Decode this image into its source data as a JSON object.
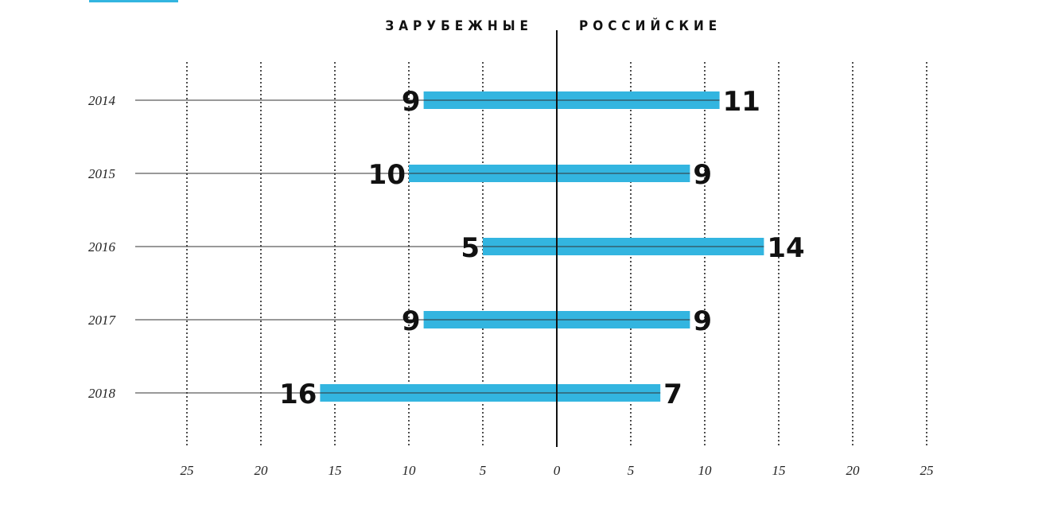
{
  "chart_data": {
    "type": "bar",
    "orientation": "horizontal-diverging",
    "left_label": "ЗАРУБЕЖНЫЕ",
    "right_label": "РОССИЙСКИЕ",
    "categories": [
      "2014",
      "2015",
      "2016",
      "2017",
      "2018"
    ],
    "series": [
      {
        "name": "ЗАРУБЕЖНЫЕ",
        "values": [
          9,
          10,
          5,
          9,
          16
        ]
      },
      {
        "name": "РОССИЙСКИЕ",
        "values": [
          11,
          9,
          14,
          9,
          7
        ]
      }
    ],
    "x_ticks": [
      25,
      20,
      15,
      10,
      5,
      0,
      5,
      10,
      15,
      20,
      25
    ],
    "xlim": [
      -25,
      25
    ],
    "grid": true,
    "bar_color": "#33b5e0"
  }
}
